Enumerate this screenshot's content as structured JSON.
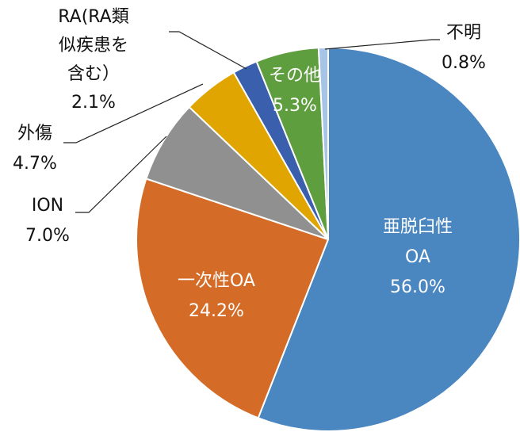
{
  "chart_data": {
    "type": "pie",
    "categories": [
      "亜脱臼性OA",
      "一次性OA",
      "ION",
      "外傷",
      "RA(RA類似疾患を含む）",
      "その他",
      "不明"
    ],
    "values": [
      56.0,
      24.2,
      7.0,
      4.7,
      2.1,
      5.3,
      0.8
    ],
    "value_labels": [
      "56.0%",
      "24.2%",
      "7.0%",
      "4.7%",
      "2.1%",
      "5.3%",
      "0.8%"
    ],
    "colors": [
      "#4a86c0",
      "#d46c27",
      "#909090",
      "#e0a500",
      "#3a5fad",
      "#5f9e3e",
      "#a6c4e6"
    ]
  }
}
